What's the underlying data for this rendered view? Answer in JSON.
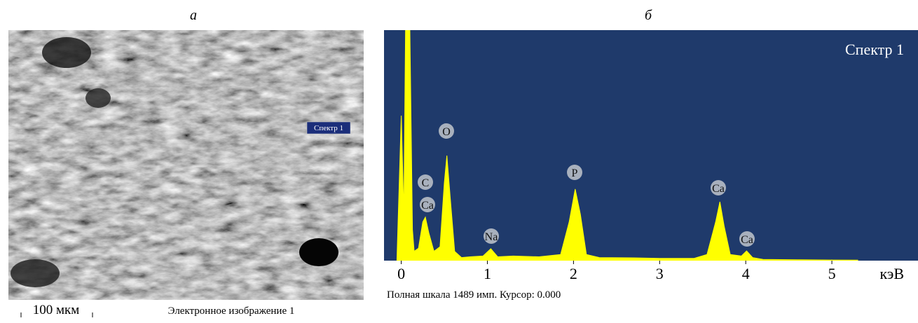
{
  "panel_a": {
    "label": "а",
    "spectrum_marker": "Спектр 1",
    "scale_bar": "100 мкм",
    "caption": "Электронное изображение 1"
  },
  "chart_data": {
    "type": "area",
    "panel_label": "б",
    "title": "Спектр 1",
    "x_label": "кэВ",
    "footer": "Полная шкала 1489 имп. Курсор: 0.000",
    "color": "#ffff00",
    "background": "#1f3a6b",
    "peak_labels": [
      "C",
      "Ca",
      "O",
      "Na",
      "P",
      "Ca",
      "Ca"
    ],
    "x": [
      -0.05,
      0,
      0.03,
      0.05,
      0.1,
      0.13,
      0.15,
      0.2,
      0.25,
      0.28,
      0.32,
      0.38,
      0.45,
      0.5,
      0.53,
      0.57,
      0.62,
      0.7,
      0.8,
      0.95,
      1.04,
      1.12,
      1.3,
      1.6,
      1.85,
      1.95,
      2.02,
      2.08,
      2.15,
      2.3,
      2.7,
      3.0,
      3.4,
      3.55,
      3.65,
      3.7,
      3.75,
      3.82,
      3.95,
      4.01,
      4.08,
      4.2,
      4.6,
      5.0,
      5.3
    ],
    "values": [
      0,
      937,
      300,
      1489,
      1489,
      200,
      60,
      80,
      250,
      281,
      180,
      60,
      90,
      500,
      679,
      400,
      60,
      20,
      25,
      30,
      77,
      25,
      30,
      25,
      40,
      250,
      462,
      300,
      40,
      20,
      18,
      15,
      15,
      40,
      250,
      380,
      220,
      40,
      30,
      63,
      20,
      8,
      6,
      4,
      3
    ],
    "xlim": [
      -0.2,
      6.0
    ],
    "ylim": [
      0,
      1489
    ],
    "xticks": [
      0,
      1,
      2,
      3,
      4,
      5
    ]
  }
}
